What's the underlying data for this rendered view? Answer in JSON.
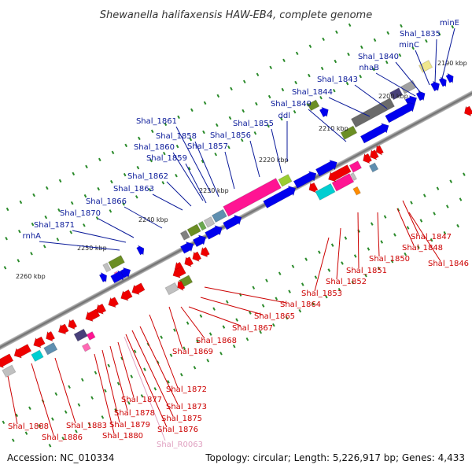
{
  "title": "Shewanella halifaxensis HAW-EB4, complete genome",
  "footer": {
    "accession": "Accession: NC_010334",
    "summary": "Topology: circular; Length: 5,226,917 bp; Genes: 4,433"
  },
  "ticks": [
    "2190 kbp",
    "2200 kbp",
    "2210 kbp",
    "2220 kbp",
    "2230 kbp",
    "2240 kbp",
    "2250 kbp",
    "2260 kbp"
  ],
  "top_genes": [
    "minE",
    "Shal_1835",
    "minC",
    "Shal_1840",
    "nhaB",
    "Shal_1843",
    "Shal_1844",
    "Shal_1849",
    "ddl",
    "Shal_1855",
    "Shal_1856",
    "Shal_1857",
    "Shal_1861",
    "Shal_1858",
    "Shal_1860",
    "Shal_1859",
    "Shal_1862",
    "Shal_1863",
    "Shal_1866",
    "Shal_1870",
    "Shal_1871",
    "rnhA"
  ],
  "bottom_genes": [
    "Shal_1846",
    "Shal_1848",
    "Shal_1847",
    "Shal_1850",
    "Shal_1851",
    "Shal_1852",
    "Shal_1853",
    "Shal_1864",
    "Shal_1865",
    "Shal_1867",
    "Shal_1868",
    "Shal_1869",
    "Shal_1872",
    "Shal_1873",
    "Shal_1875",
    "Shal_1876",
    "Shal_R0063",
    "Shal_1877",
    "Shal_1878",
    "Shal_1879",
    "Shal_1880",
    "Shal_1883",
    "Shal_1886",
    "Shal_1888"
  ],
  "colors": {
    "forward_cds": "#0000ee",
    "reverse_cds": "#ee0000",
    "top_label": "#0a1a99",
    "bottom_label": "#cc0000",
    "rna_label": "#e0a0c0"
  }
}
